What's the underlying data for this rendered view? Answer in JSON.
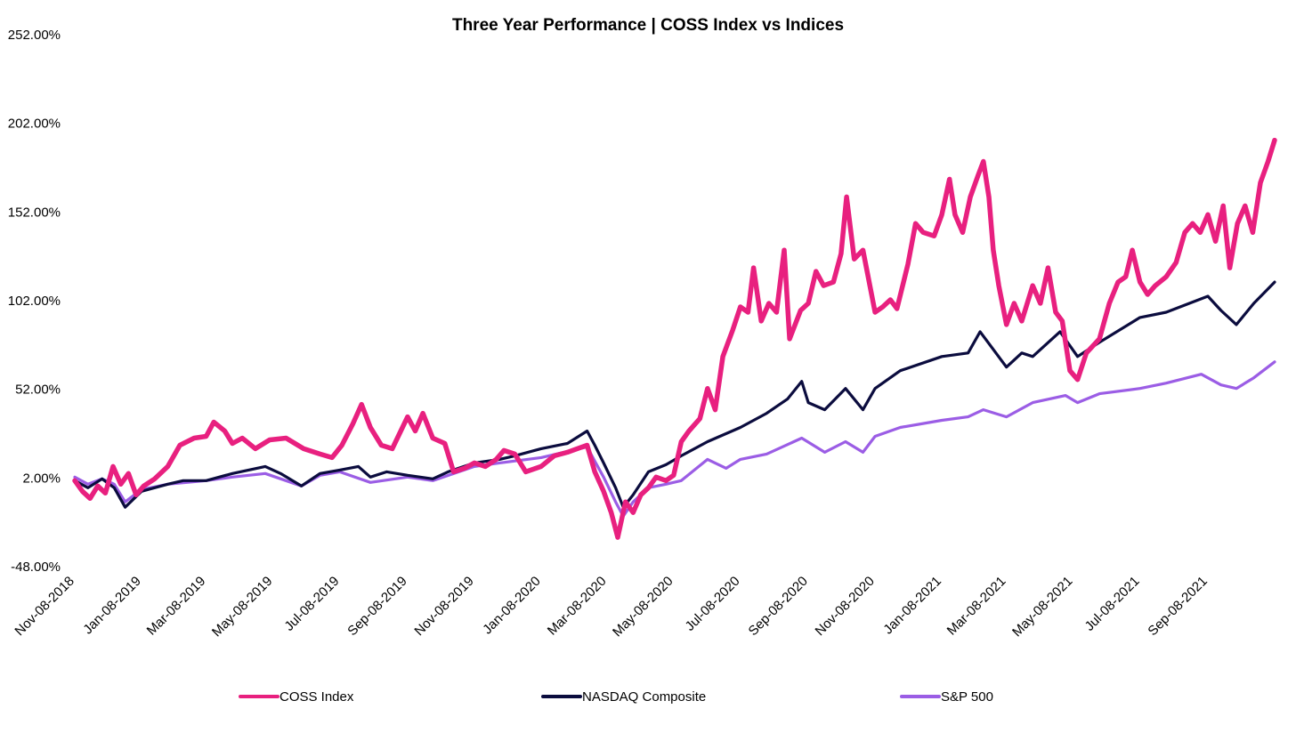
{
  "chart_data": {
    "type": "line",
    "title": "Three Year Performance | COSS Index vs Indices",
    "xlabel": "",
    "ylabel": "",
    "x_range": [
      "2018-11-08",
      "2021-11-08"
    ],
    "ylim": [
      -48,
      252
    ],
    "y_ticks": [
      "252.00%",
      "202.00%",
      "152.00%",
      "102.00%",
      "52.00%",
      "2.00%",
      "-48.00%"
    ],
    "y_tick_values": [
      252,
      202,
      152,
      102,
      52,
      2,
      -48
    ],
    "x_ticks": [
      "Nov-08-2018",
      "Jan-08-2019",
      "Mar-08-2019",
      "May-08-2019",
      "Jul-08-2019",
      "Sep-08-2019",
      "Nov-08-2019",
      "Jan-08-2020",
      "Mar-08-2020",
      "May-08-2020",
      "Jul-08-2020",
      "Sep-08-2020",
      "Nov-08-2020",
      "Jan-08-2021",
      "Mar-08-2021",
      "May-08-2021",
      "Jul-08-2021",
      "Sep-08-2021"
    ],
    "x_tick_dates": [
      "2018-11-08",
      "2019-01-08",
      "2019-03-08",
      "2019-05-08",
      "2019-07-08",
      "2019-09-08",
      "2019-11-08",
      "2020-01-08",
      "2020-03-08",
      "2020-05-08",
      "2020-07-08",
      "2020-09-08",
      "2020-11-08",
      "2021-01-08",
      "2021-03-08",
      "2021-05-08",
      "2021-07-08",
      "2021-09-08"
    ],
    "grid": false,
    "legend": "bottom",
    "series": [
      {
        "name": "COSS Index",
        "color": "#e8207f",
        "points": [
          [
            "2018-11-08",
            0
          ],
          [
            "2018-11-15",
            -6
          ],
          [
            "2018-11-22",
            -10
          ],
          [
            "2018-11-29",
            -3
          ],
          [
            "2018-12-06",
            -7
          ],
          [
            "2018-12-13",
            8
          ],
          [
            "2018-12-20",
            -2
          ],
          [
            "2018-12-27",
            4
          ],
          [
            "2019-01-03",
            -8
          ],
          [
            "2019-01-10",
            -3
          ],
          [
            "2019-01-20",
            1
          ],
          [
            "2019-02-01",
            8
          ],
          [
            "2019-02-12",
            20
          ],
          [
            "2019-02-25",
            24
          ],
          [
            "2019-03-08",
            25
          ],
          [
            "2019-03-15",
            33
          ],
          [
            "2019-03-25",
            28
          ],
          [
            "2019-04-01",
            21
          ],
          [
            "2019-04-10",
            24
          ],
          [
            "2019-04-22",
            18
          ],
          [
            "2019-05-05",
            23
          ],
          [
            "2019-05-20",
            24
          ],
          [
            "2019-06-05",
            18
          ],
          [
            "2019-06-20",
            15
          ],
          [
            "2019-07-01",
            13
          ],
          [
            "2019-07-10",
            20
          ],
          [
            "2019-07-20",
            32
          ],
          [
            "2019-07-28",
            43
          ],
          [
            "2019-08-05",
            30
          ],
          [
            "2019-08-15",
            20
          ],
          [
            "2019-08-25",
            18
          ],
          [
            "2019-09-01",
            27
          ],
          [
            "2019-09-08",
            36
          ],
          [
            "2019-09-15",
            28
          ],
          [
            "2019-09-22",
            38
          ],
          [
            "2019-10-01",
            24
          ],
          [
            "2019-10-12",
            21
          ],
          [
            "2019-10-20",
            5
          ],
          [
            "2019-10-30",
            7
          ],
          [
            "2019-11-08",
            10
          ],
          [
            "2019-11-18",
            8
          ],
          [
            "2019-11-28",
            12
          ],
          [
            "2019-12-05",
            17
          ],
          [
            "2019-12-15",
            15
          ],
          [
            "2019-12-25",
            5
          ],
          [
            "2020-01-08",
            8
          ],
          [
            "2020-01-20",
            14
          ],
          [
            "2020-02-01",
            16
          ],
          [
            "2020-02-10",
            18
          ],
          [
            "2020-02-19",
            20
          ],
          [
            "2020-02-26",
            5
          ],
          [
            "2020-03-05",
            -6
          ],
          [
            "2020-03-12",
            -18
          ],
          [
            "2020-03-18",
            -32
          ],
          [
            "2020-03-25",
            -12
          ],
          [
            "2020-04-01",
            -18
          ],
          [
            "2020-04-08",
            -8
          ],
          [
            "2020-04-15",
            -4
          ],
          [
            "2020-04-22",
            2
          ],
          [
            "2020-05-01",
            0
          ],
          [
            "2020-05-08",
            3
          ],
          [
            "2020-05-15",
            22
          ],
          [
            "2020-05-22",
            28
          ],
          [
            "2020-06-01",
            35
          ],
          [
            "2020-06-08",
            52
          ],
          [
            "2020-06-15",
            40
          ],
          [
            "2020-06-22",
            70
          ],
          [
            "2020-07-01",
            85
          ],
          [
            "2020-07-08",
            98
          ],
          [
            "2020-07-15",
            95
          ],
          [
            "2020-07-20",
            120
          ],
          [
            "2020-07-27",
            90
          ],
          [
            "2020-08-03",
            100
          ],
          [
            "2020-08-10",
            95
          ],
          [
            "2020-08-17",
            130
          ],
          [
            "2020-08-22",
            80
          ],
          [
            "2020-09-01",
            96
          ],
          [
            "2020-09-08",
            100
          ],
          [
            "2020-09-15",
            118
          ],
          [
            "2020-09-22",
            110
          ],
          [
            "2020-10-01",
            112
          ],
          [
            "2020-10-08",
            128
          ],
          [
            "2020-10-13",
            160
          ],
          [
            "2020-10-20",
            125
          ],
          [
            "2020-10-28",
            130
          ],
          [
            "2020-11-08",
            95
          ],
          [
            "2020-11-15",
            98
          ],
          [
            "2020-11-22",
            102
          ],
          [
            "2020-11-28",
            97
          ],
          [
            "2020-12-08",
            122
          ],
          [
            "2020-12-15",
            145
          ],
          [
            "2020-12-22",
            140
          ],
          [
            "2021-01-01",
            138
          ],
          [
            "2021-01-08",
            150
          ],
          [
            "2021-01-15",
            170
          ],
          [
            "2021-01-20",
            150
          ],
          [
            "2021-01-27",
            140
          ],
          [
            "2021-02-03",
            160
          ],
          [
            "2021-02-10",
            172
          ],
          [
            "2021-02-15",
            180
          ],
          [
            "2021-02-20",
            160
          ],
          [
            "2021-02-24",
            130
          ],
          [
            "2021-03-01",
            110
          ],
          [
            "2021-03-08",
            88
          ],
          [
            "2021-03-15",
            100
          ],
          [
            "2021-03-22",
            90
          ],
          [
            "2021-04-01",
            110
          ],
          [
            "2021-04-08",
            100
          ],
          [
            "2021-04-15",
            120
          ],
          [
            "2021-04-22",
            95
          ],
          [
            "2021-04-28",
            90
          ],
          [
            "2021-05-05",
            62
          ],
          [
            "2021-05-12",
            57
          ],
          [
            "2021-05-20",
            72
          ],
          [
            "2021-06-01",
            80
          ],
          [
            "2021-06-10",
            100
          ],
          [
            "2021-06-18",
            112
          ],
          [
            "2021-06-25",
            115
          ],
          [
            "2021-07-01",
            130
          ],
          [
            "2021-07-08",
            112
          ],
          [
            "2021-07-15",
            105
          ],
          [
            "2021-07-22",
            110
          ],
          [
            "2021-08-01",
            115
          ],
          [
            "2021-08-10",
            123
          ],
          [
            "2021-08-18",
            140
          ],
          [
            "2021-08-25",
            145
          ],
          [
            "2021-09-01",
            140
          ],
          [
            "2021-09-08",
            150
          ],
          [
            "2021-09-15",
            135
          ],
          [
            "2021-09-22",
            155
          ],
          [
            "2021-09-28",
            120
          ],
          [
            "2021-10-05",
            145
          ],
          [
            "2021-10-12",
            155
          ],
          [
            "2021-10-19",
            140
          ],
          [
            "2021-10-26",
            168
          ],
          [
            "2021-11-02",
            180
          ],
          [
            "2021-11-08",
            192
          ]
        ]
      },
      {
        "name": "NASDAQ Composite",
        "color": "#0b0c3e",
        "points": [
          [
            "2018-11-08",
            0
          ],
          [
            "2018-11-20",
            -4
          ],
          [
            "2018-12-03",
            1
          ],
          [
            "2018-12-14",
            -4
          ],
          [
            "2018-12-24",
            -15
          ],
          [
            "2019-01-08",
            -6
          ],
          [
            "2019-02-01",
            -2
          ],
          [
            "2019-02-15",
            0
          ],
          [
            "2019-03-08",
            0
          ],
          [
            "2019-04-01",
            4
          ],
          [
            "2019-05-01",
            8
          ],
          [
            "2019-05-15",
            4
          ],
          [
            "2019-06-03",
            -3
          ],
          [
            "2019-06-20",
            4
          ],
          [
            "2019-07-08",
            6
          ],
          [
            "2019-07-25",
            8
          ],
          [
            "2019-08-05",
            2
          ],
          [
            "2019-08-20",
            5
          ],
          [
            "2019-09-08",
            3
          ],
          [
            "2019-10-01",
            1
          ],
          [
            "2019-10-15",
            5
          ],
          [
            "2019-11-08",
            10
          ],
          [
            "2019-12-01",
            12
          ],
          [
            "2019-12-15",
            14
          ],
          [
            "2020-01-08",
            18
          ],
          [
            "2020-02-01",
            21
          ],
          [
            "2020-02-19",
            28
          ],
          [
            "2020-02-26",
            20
          ],
          [
            "2020-03-05",
            10
          ],
          [
            "2020-03-16",
            -4
          ],
          [
            "2020-03-23",
            -15
          ],
          [
            "2020-04-01",
            -8
          ],
          [
            "2020-04-15",
            5
          ],
          [
            "2020-05-01",
            9
          ],
          [
            "2020-05-15",
            14
          ],
          [
            "2020-06-08",
            22
          ],
          [
            "2020-07-08",
            30
          ],
          [
            "2020-08-01",
            38
          ],
          [
            "2020-08-20",
            46
          ],
          [
            "2020-09-02",
            56
          ],
          [
            "2020-09-08",
            44
          ],
          [
            "2020-09-23",
            40
          ],
          [
            "2020-10-12",
            52
          ],
          [
            "2020-10-28",
            40
          ],
          [
            "2020-11-08",
            52
          ],
          [
            "2020-12-01",
            62
          ],
          [
            "2021-01-08",
            70
          ],
          [
            "2021-02-01",
            72
          ],
          [
            "2021-02-12",
            84
          ],
          [
            "2021-03-08",
            64
          ],
          [
            "2021-03-22",
            72
          ],
          [
            "2021-04-01",
            70
          ],
          [
            "2021-04-26",
            84
          ],
          [
            "2021-05-12",
            70
          ],
          [
            "2021-06-01",
            78
          ],
          [
            "2021-07-08",
            92
          ],
          [
            "2021-08-01",
            95
          ],
          [
            "2021-09-08",
            104
          ],
          [
            "2021-09-20",
            96
          ],
          [
            "2021-10-04",
            88
          ],
          [
            "2021-10-20",
            100
          ],
          [
            "2021-11-08",
            112
          ]
        ]
      },
      {
        "name": "S&P 500",
        "color": "#9b5de5",
        "points": [
          [
            "2018-11-08",
            2
          ],
          [
            "2018-11-20",
            -2
          ],
          [
            "2018-12-03",
            1
          ],
          [
            "2018-12-14",
            -2
          ],
          [
            "2018-12-24",
            -12
          ],
          [
            "2019-01-08",
            -5
          ],
          [
            "2019-02-01",
            -2
          ],
          [
            "2019-03-08",
            0
          ],
          [
            "2019-04-01",
            2
          ],
          [
            "2019-05-01",
            4
          ],
          [
            "2019-06-03",
            -3
          ],
          [
            "2019-06-20",
            3
          ],
          [
            "2019-07-08",
            5
          ],
          [
            "2019-08-05",
            -1
          ],
          [
            "2019-09-08",
            2
          ],
          [
            "2019-10-01",
            0
          ],
          [
            "2019-11-08",
            8
          ],
          [
            "2019-12-01",
            10
          ],
          [
            "2020-01-08",
            13
          ],
          [
            "2020-02-19",
            19
          ],
          [
            "2020-02-26",
            11
          ],
          [
            "2020-03-05",
            2
          ],
          [
            "2020-03-16",
            -12
          ],
          [
            "2020-03-23",
            -20
          ],
          [
            "2020-04-01",
            -12
          ],
          [
            "2020-04-15",
            -4
          ],
          [
            "2020-05-01",
            -2
          ],
          [
            "2020-05-15",
            0
          ],
          [
            "2020-06-08",
            12
          ],
          [
            "2020-06-25",
            7
          ],
          [
            "2020-07-08",
            12
          ],
          [
            "2020-08-01",
            15
          ],
          [
            "2020-09-02",
            24
          ],
          [
            "2020-09-23",
            16
          ],
          [
            "2020-10-12",
            22
          ],
          [
            "2020-10-28",
            16
          ],
          [
            "2020-11-08",
            25
          ],
          [
            "2020-12-01",
            30
          ],
          [
            "2021-01-08",
            34
          ],
          [
            "2021-02-01",
            36
          ],
          [
            "2021-02-15",
            40
          ],
          [
            "2021-03-08",
            36
          ],
          [
            "2021-04-01",
            44
          ],
          [
            "2021-05-01",
            48
          ],
          [
            "2021-05-12",
            44
          ],
          [
            "2021-06-01",
            49
          ],
          [
            "2021-07-08",
            52
          ],
          [
            "2021-08-01",
            55
          ],
          [
            "2021-09-02",
            60
          ],
          [
            "2021-09-20",
            54
          ],
          [
            "2021-10-04",
            52
          ],
          [
            "2021-10-20",
            58
          ],
          [
            "2021-11-08",
            67
          ]
        ]
      }
    ]
  }
}
